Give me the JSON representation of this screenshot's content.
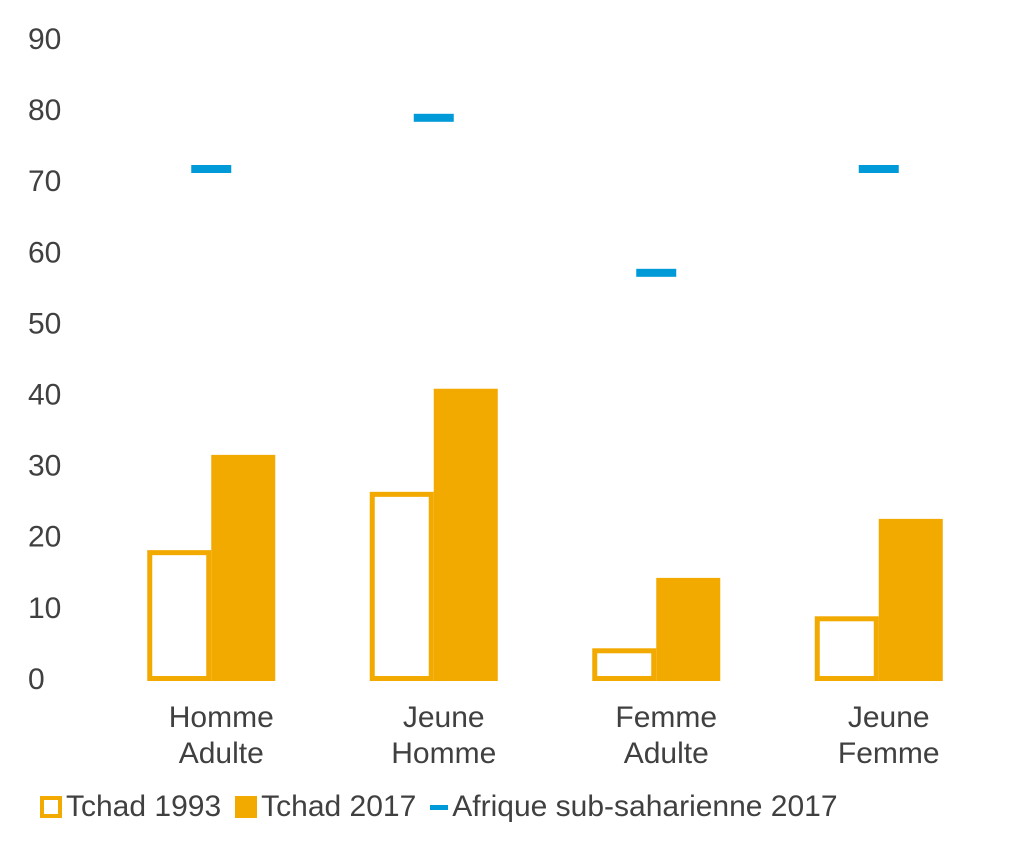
{
  "chart_data": {
    "type": "bar",
    "categories": [
      "Homme Adulte",
      "Jeune Homme",
      "Femme Adulte",
      "Jeune Femme"
    ],
    "series": [
      {
        "name": "Tchad 1993",
        "color": "#f2a900",
        "style": "outline",
        "values": [
          18.4,
          26.6,
          4.6,
          9.1
        ]
      },
      {
        "name": "Tchad 2017",
        "color": "#f2a900",
        "style": "fill",
        "values": [
          31.8,
          41.1,
          14.5,
          22.8
        ]
      },
      {
        "name": "Afrique sub-saharienne 2017",
        "color": "#009ad9",
        "style": "dash",
        "values": [
          72,
          79.2,
          57.4,
          72
        ]
      }
    ],
    "ylim": [
      0,
      90
    ],
    "yticks": [
      0,
      10,
      20,
      30,
      40,
      50,
      60,
      70,
      80,
      90
    ],
    "grid": false,
    "legend": "bottom"
  }
}
